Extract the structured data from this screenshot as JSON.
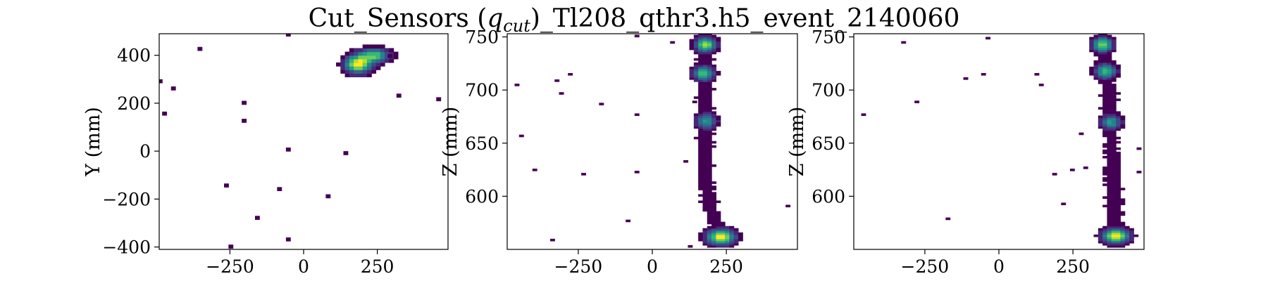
{
  "figure": {
    "title_main": "Cut_Sensors (",
    "title_sym": "q",
    "title_sub": "cut",
    "title_rest": ")_Tl208_qthr3.h5_event_2140060"
  },
  "colors": {
    "viridis": [
      "#440154",
      "#482878",
      "#3e4a89",
      "#31688e",
      "#26828e",
      "#1f9e89",
      "#35b779",
      "#6ece58",
      "#b5de2b",
      "#fde725"
    ]
  },
  "chart_data": [
    {
      "type": "heatmap",
      "xlabel": "",
      "ylabel": "Y (mm)",
      "xlim": [
        -490,
        490
      ],
      "ylim": [
        -410,
        490
      ],
      "xticks": [
        -250,
        0,
        250
      ],
      "yticks": [
        -400,
        -200,
        0,
        200,
        400
      ],
      "xtick_labels": [
        "−250",
        "0",
        "250"
      ],
      "ytick_labels": [
        "−400",
        "−200",
        "0",
        "200",
        "400"
      ],
      "grid": false,
      "cell_size": [
        15,
        15
      ],
      "blobs": [
        {
          "x": 185,
          "y": 365,
          "sx": 28,
          "sy": 24,
          "peak": 1.0
        },
        {
          "x": 240,
          "y": 400,
          "sx": 32,
          "sy": 18,
          "peak": 0.72
        }
      ],
      "blob_floor": 0.05,
      "cells": [
        [
          -360,
          422
        ],
        [
          -440,
          265
        ],
        [
          -485,
          295
        ],
        [
          -480,
          155
        ],
        [
          -205,
          205
        ],
        [
          -205,
          125
        ],
        [
          -55,
          485
        ],
        [
          -55,
          0
        ],
        [
          -55,
          -370
        ],
        [
          -90,
          -155
        ],
        [
          -270,
          -140
        ],
        [
          -160,
          -280
        ],
        [
          80,
          -185
        ],
        [
          145,
          -15
        ],
        [
          315,
          235
        ],
        [
          455,
          220
        ],
        [
          -250,
          -405
        ],
        [
          295,
          395
        ]
      ]
    },
    {
      "type": "heatmap",
      "xlabel": "",
      "ylabel": "Z (mm)",
      "xlim": [
        -490,
        490
      ],
      "ylim": [
        550,
        753
      ],
      "xticks": [
        -250,
        0,
        250
      ],
      "yticks": [
        600,
        650,
        700,
        750
      ],
      "xtick_labels": [
        "−250",
        "0",
        "250"
      ],
      "ytick_labels": [
        "600",
        "650",
        "700",
        "750"
      ],
      "grid": false,
      "cell_size": [
        15,
        2
      ],
      "track": [
        [
          745,
          180
        ],
        [
          735,
          178
        ],
        [
          722,
          175
        ],
        [
          712,
          174
        ],
        [
          700,
          178
        ],
        [
          690,
          180
        ],
        [
          680,
          178
        ],
        [
          668,
          180
        ],
        [
          655,
          182
        ],
        [
          642,
          180
        ],
        [
          630,
          182
        ],
        [
          618,
          183
        ],
        [
          605,
          185
        ],
        [
          595,
          190
        ],
        [
          585,
          200
        ],
        [
          575,
          215
        ],
        [
          565,
          232
        ],
        [
          555,
          240
        ]
      ],
      "track_width": 28,
      "blobs": [
        {
          "x": 180,
          "y": 743,
          "sx": 22,
          "sy": 4.5,
          "peak": 0.85
        },
        {
          "x": 173,
          "y": 716,
          "sx": 22,
          "sy": 4.5,
          "peak": 0.72
        },
        {
          "x": 182,
          "y": 671,
          "sx": 22,
          "sy": 4.5,
          "peak": 0.55
        },
        {
          "x": 232,
          "y": 562,
          "sx": 30,
          "sy": 4.5,
          "peak": 1.0
        }
      ],
      "blob_floor": 0.05,
      "cells": [
        [
          -460,
          705
        ],
        [
          -440,
          657
        ],
        [
          -400,
          625
        ],
        [
          -340,
          559
        ],
        [
          -320,
          709
        ],
        [
          -310,
          697
        ],
        [
          -280,
          715
        ],
        [
          -230,
          621
        ],
        [
          -180,
          687
        ],
        [
          -90,
          577
        ],
        [
          -60,
          750
        ],
        [
          -50,
          677
        ],
        [
          -50,
          623
        ],
        [
          70,
          745
        ],
        [
          110,
          633
        ],
        [
          130,
          553
        ],
        [
          140,
          688
        ],
        [
          455,
          591
        ]
      ]
    },
    {
      "type": "heatmap",
      "xlabel": "",
      "ylabel": "Z (mm)",
      "xlim": [
        -490,
        490
      ],
      "ylim": [
        550,
        753
      ],
      "xticks": [
        -250,
        0,
        250
      ],
      "yticks": [
        600,
        650,
        700,
        750
      ],
      "xtick_labels": [
        "−250",
        "0",
        "250"
      ],
      "ytick_labels": [
        "600",
        "650",
        "700",
        "750"
      ],
      "grid": false,
      "cell_size": [
        15,
        2
      ],
      "track": [
        [
          748,
          348
        ],
        [
          735,
          352
        ],
        [
          722,
          358
        ],
        [
          712,
          362
        ],
        [
          700,
          368
        ],
        [
          690,
          372
        ],
        [
          680,
          375
        ],
        [
          668,
          378
        ],
        [
          655,
          380
        ],
        [
          642,
          380
        ],
        [
          630,
          382
        ],
        [
          618,
          383
        ],
        [
          605,
          385
        ],
        [
          595,
          388
        ],
        [
          585,
          390
        ],
        [
          575,
          393
        ],
        [
          565,
          396
        ],
        [
          555,
          398
        ]
      ],
      "track_width": 28,
      "blobs": [
        {
          "x": 350,
          "y": 743,
          "sx": 22,
          "sy": 4.5,
          "peak": 0.8
        },
        {
          "x": 360,
          "y": 718,
          "sx": 22,
          "sy": 4.5,
          "peak": 0.7
        },
        {
          "x": 378,
          "y": 670,
          "sx": 22,
          "sy": 4.5,
          "peak": 0.55
        },
        {
          "x": 395,
          "y": 563,
          "sx": 28,
          "sy": 4.5,
          "peak": 1.0
        }
      ],
      "blob_floor": 0.05,
      "cells": [
        [
          -460,
          677
        ],
        [
          -320,
          745
        ],
        [
          -280,
          689
        ],
        [
          -170,
          578
        ],
        [
          -120,
          710
        ],
        [
          -60,
          715
        ],
        [
          -40,
          749
        ],
        [
          120,
          714
        ],
        [
          140,
          705
        ],
        [
          190,
          621
        ],
        [
          220,
          592
        ],
        [
          240,
          625
        ],
        [
          295,
          627
        ],
        [
          280,
          659
        ],
        [
          470,
          644
        ],
        [
          475,
          623
        ]
      ]
    }
  ]
}
